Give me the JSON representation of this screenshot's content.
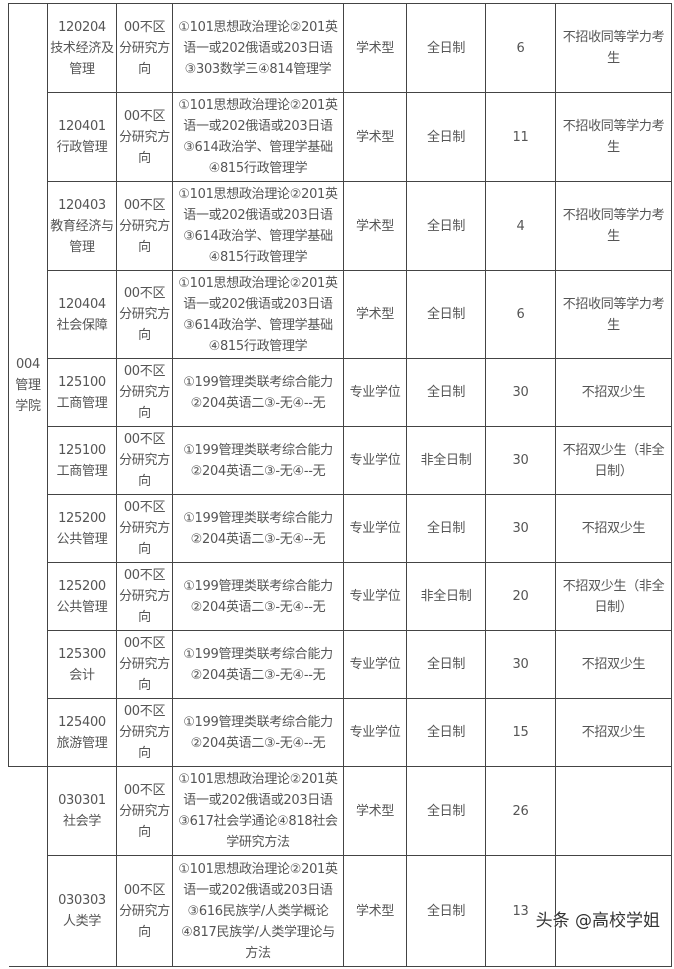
{
  "groups": [
    {
      "dept": "004\n管理\n学院",
      "rows": [
        {
          "major": "120204\n技术经济及管理",
          "direction": "00不区分研究方向",
          "exam": "①101思想政治理论②201英语一或202俄语或203日语③303数学三④814管理学",
          "type": "学术型",
          "mode": "全日制",
          "quota": "6",
          "note": "不招收同等学力考生"
        },
        {
          "major": "120401\n行政管理",
          "direction": "00不区分研究方向",
          "exam": "①101思想政治理论②201英语一或202俄语或203日语③614政治学、管理学基础④815行政管理学",
          "type": "学术型",
          "mode": "全日制",
          "quota": "11",
          "note": "不招收同等学力考生"
        },
        {
          "major": "120403\n教育经济与管理",
          "direction": "00不区分研究方向",
          "exam": "①101思想政治理论②201英语一或202俄语或203日语③614政治学、管理学基础④815行政管理学",
          "type": "学术型",
          "mode": "全日制",
          "quota": "4",
          "note": "不招收同等学力考生"
        },
        {
          "major": "120404\n社会保障",
          "direction": "00不区分研究方向",
          "exam": "①101思想政治理论②201英语一或202俄语或203日语③614政治学、管理学基础④815行政管理学",
          "type": "学术型",
          "mode": "全日制",
          "quota": "6",
          "note": "不招收同等学力考生"
        },
        {
          "major": "125100\n工商管理",
          "direction": "00不区分研究方向",
          "exam": "①199管理类联考综合能力②204英语二③-无④--无",
          "type": "专业学位",
          "mode": "全日制",
          "quota": "30",
          "note": "不招双少生"
        },
        {
          "major": "125100\n工商管理",
          "direction": "00不区分研究方向",
          "exam": "①199管理类联考综合能力②204英语二③-无④--无",
          "type": "专业学位",
          "mode": "非全日制",
          "quota": "30",
          "note": "不招双少生（非全日制）"
        },
        {
          "major": "125200\n公共管理",
          "direction": "00不区分研究方向",
          "exam": "①199管理类联考综合能力②204英语二③-无④--无",
          "type": "专业学位",
          "mode": "全日制",
          "quota": "30",
          "note": "不招双少生"
        },
        {
          "major": "125200\n公共管理",
          "direction": "00不区分研究方向",
          "exam": "①199管理类联考综合能力②204英语二③-无④--无",
          "type": "专业学位",
          "mode": "非全日制",
          "quota": "20",
          "note": "不招双少生（非全日制）"
        },
        {
          "major": "125300\n会计",
          "direction": "00不区分研究方向",
          "exam": "①199管理类联考综合能力②204英语二③-无④--无",
          "type": "专业学位",
          "mode": "全日制",
          "quota": "30",
          "note": "不招双少生"
        },
        {
          "major": "125400\n旅游管理",
          "direction": "00不区分研究方向",
          "exam": "①199管理类联考综合能力②204英语二③-无④--无",
          "type": "专业学位",
          "mode": "全日制",
          "quota": "15",
          "note": "不招双少生"
        }
      ]
    },
    {
      "dept": "",
      "rows": [
        {
          "major": "030301\n社会学",
          "direction": "00不区分研究方向",
          "exam": "①101思想政治理论②201英语一或202俄语或203日语③617社会学通论④818社会学研究方法",
          "type": "学术型",
          "mode": "全日制",
          "quota": "26",
          "note": ""
        },
        {
          "major": "030303\n人类学",
          "direction": "00不区分研究方向",
          "exam": "①101思想政治理论②201英语一或202俄语或203日语③616民族学/人类学概论④817民族学/人类学理论与方法",
          "type": "学术型",
          "mode": "全日制",
          "quota": "13",
          "note": ""
        }
      ]
    }
  ],
  "watermark": "头条 @高校学姐"
}
